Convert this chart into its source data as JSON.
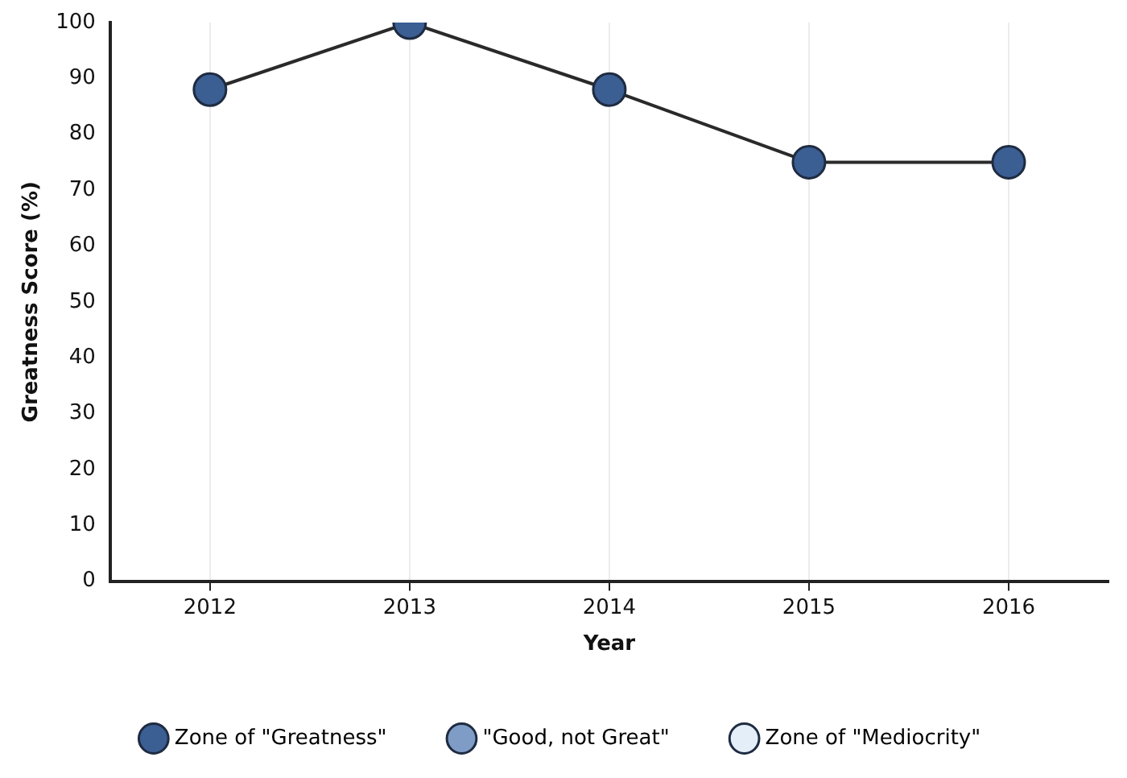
{
  "chart_data": {
    "type": "line",
    "xlabel": "Year",
    "ylabel": "Greatness Score (%)",
    "categories": [
      "2012",
      "2013",
      "2014",
      "2015",
      "2016"
    ],
    "series": [
      {
        "name": "Zone of \"Greatness\"",
        "color": "#3b5e93",
        "values": [
          88,
          100,
          88,
          75,
          75
        ]
      },
      {
        "name": "\"Good, not Great\"",
        "color": "#7f9cc7",
        "values": [
          null,
          null,
          null,
          null,
          null
        ]
      },
      {
        "name": "Zone of \"Mediocrity\"",
        "color": "#e3eef8",
        "values": [
          null,
          null,
          null,
          null,
          null
        ]
      }
    ],
    "ylim": [
      0,
      100
    ],
    "yticks": [
      0,
      10,
      20,
      30,
      40,
      50,
      60,
      70,
      80,
      90,
      100
    ],
    "grid": "x",
    "legend": "bottom",
    "marker": "circle",
    "line_style": "solid"
  }
}
